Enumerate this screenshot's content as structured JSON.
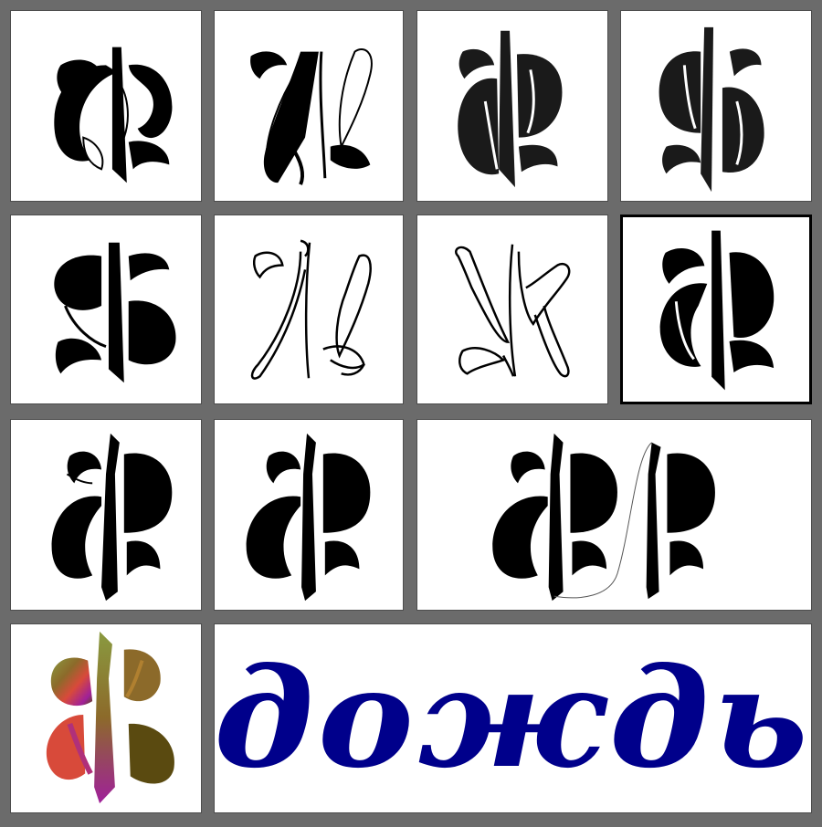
{
  "colors": {
    "background": "#6b6b6b",
    "ink": "#000000",
    "ink_dark": "#1a1a1a",
    "word_color": "#00008b",
    "gradient": [
      "#8a9a40",
      "#8c6a2a",
      "#d84a3a",
      "#a0209a",
      "#5a4a10"
    ]
  },
  "glyph_variants": [
    {
      "name": "heavy-black",
      "fill": "solid",
      "selected": false
    },
    {
      "name": "light-calligraphic",
      "fill": "contrast",
      "selected": false
    },
    {
      "name": "dark-bold",
      "fill": "solid",
      "selected": false
    },
    {
      "name": "dark-bold-mirrored",
      "fill": "solid",
      "selected": false
    },
    {
      "name": "heavy-black-mirrored",
      "fill": "solid",
      "selected": false
    },
    {
      "name": "outline",
      "fill": "outline",
      "selected": false
    },
    {
      "name": "outline-mirrored",
      "fill": "outline",
      "selected": false
    },
    {
      "name": "heavy-black-framed",
      "fill": "solid",
      "selected": true
    },
    {
      "name": "spiky-black",
      "fill": "solid",
      "selected": false
    },
    {
      "name": "spiky-black-alt",
      "fill": "solid",
      "selected": false
    },
    {
      "name": "spiky-black-construction",
      "fill": "solid",
      "selected": false
    },
    {
      "name": "gradient-color",
      "fill": "gradient",
      "selected": false
    }
  ],
  "word_tile": {
    "text": "дождь",
    "icon": "word-lettering-icon"
  }
}
